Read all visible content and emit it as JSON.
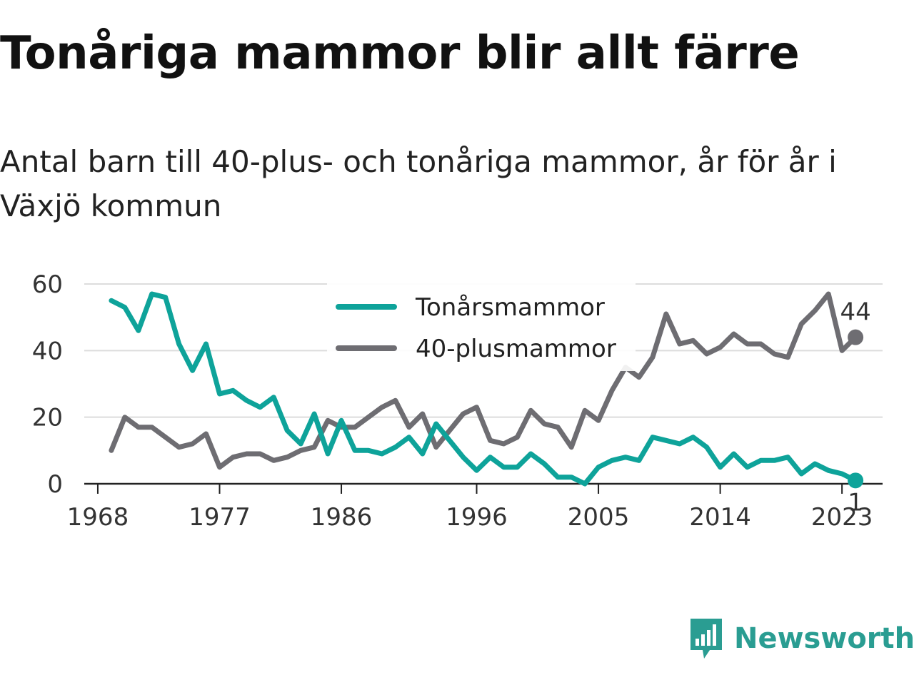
{
  "header": {
    "title": "Tonåriga mammor blir allt färre",
    "subtitle": "Antal barn till 40-plus- och tonåriga mammor, år för år i Växjö kommun"
  },
  "branding": {
    "name": "Newsworthy",
    "icon": "newsworthy-logo-icon",
    "color": "#2a9d92"
  },
  "chart_data": {
    "type": "line",
    "title": "Tonåriga mammor blir allt färre",
    "subtitle": "Antal barn till 40-plus- och tonåriga mammor, år för år i Växjö kommun",
    "xlabel": "",
    "ylabel": "",
    "xlim": [
      1967,
      2026
    ],
    "ylim": [
      0,
      60
    ],
    "x_ticks": [
      1968,
      1977,
      1986,
      1996,
      2005,
      2014,
      2023
    ],
    "y_ticks": [
      0,
      20,
      40,
      60
    ],
    "grid": true,
    "legend_position": "top-center",
    "x": [
      1969,
      1970,
      1971,
      1972,
      1973,
      1974,
      1975,
      1976,
      1977,
      1978,
      1979,
      1980,
      1981,
      1982,
      1983,
      1984,
      1985,
      1986,
      1987,
      1988,
      1989,
      1990,
      1991,
      1992,
      1993,
      1994,
      1995,
      1996,
      1997,
      1998,
      1999,
      2000,
      2001,
      2002,
      2003,
      2004,
      2005,
      2006,
      2007,
      2008,
      2009,
      2010,
      2011,
      2012,
      2013,
      2014,
      2015,
      2016,
      2017,
      2018,
      2019,
      2020,
      2021,
      2022,
      2023,
      2024
    ],
    "series": [
      {
        "name": "Tonårsmammor",
        "color": "#0ea39a",
        "end_label": "1",
        "values": [
          55,
          53,
          46,
          57,
          56,
          42,
          34,
          42,
          27,
          28,
          25,
          23,
          26,
          16,
          12,
          21,
          9,
          19,
          10,
          10,
          9,
          11,
          14,
          9,
          18,
          13,
          8,
          4,
          8,
          5,
          5,
          9,
          6,
          2,
          2,
          0,
          5,
          7,
          8,
          7,
          14,
          13,
          12,
          14,
          11,
          5,
          9,
          5,
          7,
          7,
          8,
          3,
          6,
          4,
          3,
          1
        ]
      },
      {
        "name": "40-plusmammor",
        "color": "#6e6d72",
        "end_label": "44",
        "values": [
          10,
          20,
          17,
          17,
          14,
          11,
          12,
          15,
          5,
          8,
          9,
          9,
          7,
          8,
          10,
          11,
          19,
          17,
          17,
          20,
          23,
          25,
          17,
          21,
          11,
          16,
          21,
          23,
          13,
          12,
          14,
          22,
          18,
          17,
          11,
          22,
          19,
          28,
          35,
          32,
          38,
          51,
          42,
          43,
          39,
          41,
          45,
          42,
          42,
          39,
          38,
          48,
          52,
          57,
          40,
          44
        ]
      }
    ]
  }
}
